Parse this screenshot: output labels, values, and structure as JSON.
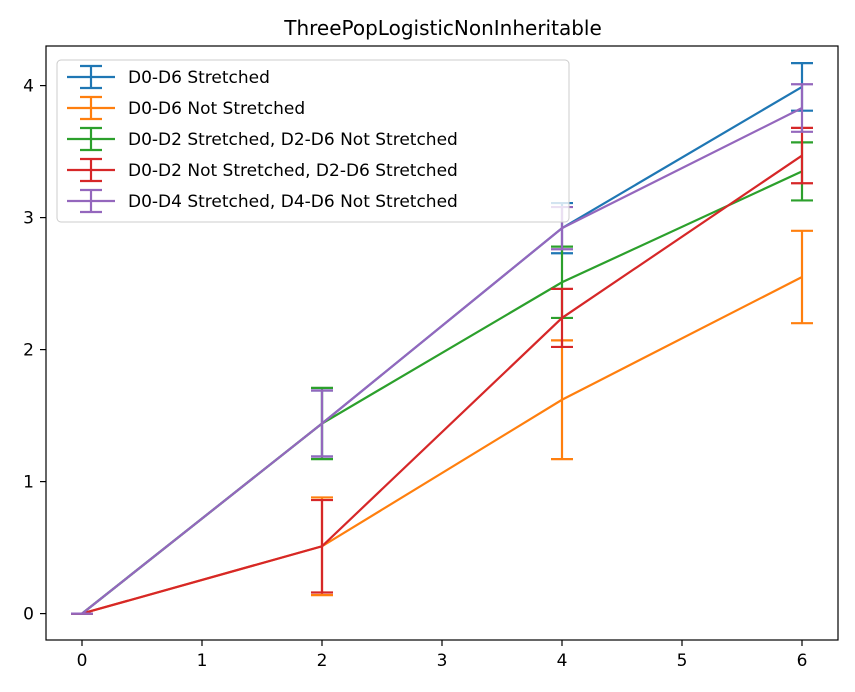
{
  "chart_data": {
    "type": "line",
    "title": "ThreePopLogisticNonInheritable",
    "xlabel": "",
    "ylabel": "",
    "xlim": [
      -0.3,
      6.3
    ],
    "ylim": [
      -0.2,
      4.3
    ],
    "xticks": [
      "0",
      "1",
      "2",
      "3",
      "4",
      "5",
      "6"
    ],
    "yticks": [
      "0",
      "1",
      "2",
      "3",
      "4"
    ],
    "grid": false,
    "legend_position": "top-left",
    "x": [
      0,
      2,
      4,
      6
    ],
    "series": [
      {
        "name": "D0-D6 Stretched",
        "color": "#1f77b4",
        "values": [
          0,
          1.44,
          2.92,
          3.99
        ],
        "errors": [
          0,
          0.25,
          0.19,
          0.18
        ]
      },
      {
        "name": "D0-D6 Not Stretched",
        "color": "#ff7f0e",
        "values": [
          0,
          0.51,
          1.62,
          2.55
        ],
        "errors": [
          0,
          0.37,
          0.45,
          0.35
        ]
      },
      {
        "name": "D0-D2 Stretched, D2-D6 Not Stretched",
        "color": "#2ca02c",
        "values": [
          0,
          1.44,
          2.51,
          3.35
        ],
        "errors": [
          0,
          0.27,
          0.27,
          0.22
        ]
      },
      {
        "name": "D0-D2 Not Stretched, D2-D6 Stretched",
        "color": "#d62728",
        "values": [
          0,
          0.51,
          2.24,
          3.47
        ],
        "errors": [
          0,
          0.35,
          0.22,
          0.21
        ]
      },
      {
        "name": "D0-D4 Stretched, D4-D6 Not Stretched",
        "color": "#9467bd",
        "values": [
          0,
          1.44,
          2.92,
          3.83
        ],
        "errors": [
          0,
          0.25,
          0.16,
          0.18
        ]
      }
    ]
  }
}
